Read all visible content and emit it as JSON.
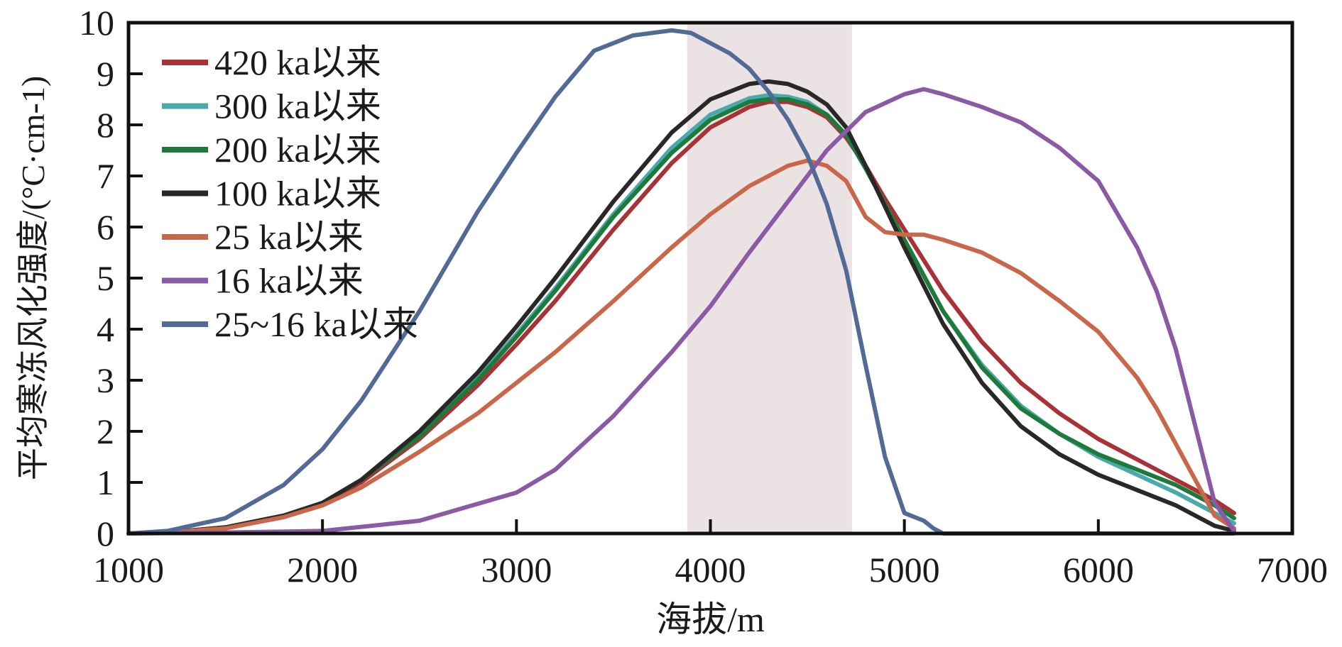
{
  "chart_data": {
    "type": "line",
    "xlabel": "海拔/m",
    "ylabel": "平均寒冻风化强度/(°C·cm-1)",
    "xlim": [
      1000,
      7000
    ],
    "ylim": [
      0,
      10
    ],
    "xticks": [
      "1000",
      "2000",
      "3000",
      "4000",
      "5000",
      "6000",
      "7000"
    ],
    "yticks": [
      "0",
      "1",
      "2",
      "3",
      "4",
      "5",
      "6",
      "7",
      "8",
      "9",
      "10"
    ],
    "grid": false,
    "legend_position": "top-left",
    "highlight_band": {
      "x_from": 3880,
      "x_to": 4730,
      "color": "#ebe3e3"
    },
    "series": [
      {
        "name": "420 ka以来",
        "color": "#a83236",
        "x": [
          1000,
          1200,
          1500,
          1800,
          2000,
          2200,
          2500,
          2800,
          3000,
          3200,
          3500,
          3800,
          4000,
          4200,
          4300,
          4400,
          4500,
          4600,
          4700,
          4800,
          4900,
          5000,
          5100,
          5200,
          5400,
          5600,
          5800,
          6000,
          6200,
          6400,
          6600,
          6700
        ],
        "y": [
          0,
          0.02,
          0.12,
          0.35,
          0.6,
          1.0,
          1.85,
          2.9,
          3.7,
          4.55,
          5.95,
          7.25,
          7.95,
          8.35,
          8.45,
          8.45,
          8.35,
          8.15,
          7.75,
          7.2,
          6.55,
          5.95,
          5.35,
          4.75,
          3.75,
          2.95,
          2.35,
          1.85,
          1.45,
          1.05,
          0.65,
          0.4
        ]
      },
      {
        "name": "300 ka以来",
        "color": "#4aa9ac",
        "x": [
          1000,
          1200,
          1500,
          1800,
          2000,
          2200,
          2500,
          2800,
          3000,
          3200,
          3500,
          3800,
          4000,
          4200,
          4300,
          4400,
          4500,
          4600,
          4700,
          4800,
          4900,
          5000,
          5100,
          5200,
          5400,
          5600,
          5800,
          6000,
          6200,
          6400,
          6600,
          6700
        ],
        "y": [
          0,
          0.02,
          0.12,
          0.35,
          0.6,
          1.05,
          1.95,
          3.05,
          3.9,
          4.8,
          6.25,
          7.55,
          8.2,
          8.52,
          8.58,
          8.55,
          8.45,
          8.2,
          7.8,
          7.15,
          6.45,
          5.75,
          5.05,
          4.35,
          3.3,
          2.5,
          1.95,
          1.5,
          1.15,
          0.8,
          0.4,
          0.2
        ]
      },
      {
        "name": "200 ka以来",
        "color": "#1e7a3a",
        "x": [
          1000,
          1200,
          1500,
          1800,
          2000,
          2200,
          2500,
          2800,
          3000,
          3200,
          3500,
          3800,
          4000,
          4200,
          4300,
          4400,
          4500,
          4600,
          4700,
          4800,
          4900,
          5000,
          5100,
          5200,
          5400,
          5600,
          5800,
          6000,
          6200,
          6400,
          6600,
          6700
        ],
        "y": [
          0,
          0.02,
          0.12,
          0.35,
          0.6,
          1.05,
          1.9,
          3.0,
          3.85,
          4.75,
          6.2,
          7.45,
          8.1,
          8.45,
          8.5,
          8.5,
          8.4,
          8.2,
          7.8,
          7.15,
          6.45,
          5.75,
          5.05,
          4.35,
          3.25,
          2.45,
          1.95,
          1.55,
          1.25,
          0.95,
          0.55,
          0.3
        ]
      },
      {
        "name": "100 ka以来",
        "color": "#2a2826",
        "x": [
          1000,
          1200,
          1500,
          1800,
          2000,
          2200,
          2500,
          2800,
          3000,
          3200,
          3500,
          3800,
          4000,
          4200,
          4300,
          4400,
          4500,
          4600,
          4700,
          4800,
          4900,
          5000,
          5100,
          5200,
          5400,
          5600,
          5800,
          6000,
          6200,
          6400,
          6600,
          6700
        ],
        "y": [
          0,
          0.02,
          0.12,
          0.35,
          0.6,
          1.05,
          2.0,
          3.15,
          4.05,
          5.0,
          6.5,
          7.85,
          8.5,
          8.8,
          8.85,
          8.8,
          8.65,
          8.4,
          7.95,
          7.2,
          6.4,
          5.6,
          4.85,
          4.1,
          2.95,
          2.1,
          1.55,
          1.15,
          0.85,
          0.55,
          0.15,
          0.05
        ]
      },
      {
        "name": "25 ka以来",
        "color": "#c8674a",
        "x": [
          1000,
          1200,
          1500,
          1800,
          2000,
          2200,
          2500,
          2800,
          3000,
          3200,
          3500,
          3800,
          4000,
          4200,
          4400,
          4500,
          4600,
          4700,
          4800,
          4900,
          5000,
          5100,
          5200,
          5400,
          5600,
          5800,
          6000,
          6200,
          6300,
          6400,
          6500,
          6600,
          6700
        ],
        "y": [
          0,
          0.02,
          0.1,
          0.32,
          0.55,
          0.9,
          1.6,
          2.35,
          2.95,
          3.55,
          4.55,
          5.6,
          6.25,
          6.8,
          7.2,
          7.3,
          7.2,
          6.9,
          6.2,
          5.9,
          5.85,
          5.85,
          5.75,
          5.5,
          5.1,
          4.55,
          3.95,
          3.05,
          2.45,
          1.75,
          1.05,
          0.35,
          0.1
        ]
      },
      {
        "name": "16 ka以来",
        "color": "#8a5aa6",
        "x": [
          1000,
          1500,
          2000,
          2500,
          3000,
          3200,
          3500,
          3800,
          4000,
          4200,
          4400,
          4600,
          4800,
          5000,
          5100,
          5200,
          5400,
          5600,
          5800,
          6000,
          6200,
          6300,
          6400,
          6500,
          6600,
          6700
        ],
        "y": [
          0,
          0.02,
          0.05,
          0.25,
          0.8,
          1.25,
          2.3,
          3.55,
          4.45,
          5.5,
          6.5,
          7.5,
          8.25,
          8.6,
          8.7,
          8.6,
          8.35,
          8.05,
          7.55,
          6.9,
          5.6,
          4.75,
          3.6,
          2.1,
          0.6,
          0.05
        ]
      },
      {
        "name": "25~16 ka以来",
        "color": "#526a96",
        "x": [
          1000,
          1200,
          1500,
          1800,
          2000,
          2200,
          2500,
          2800,
          3000,
          3200,
          3400,
          3600,
          3800,
          3900,
          4000,
          4100,
          4200,
          4300,
          4400,
          4500,
          4600,
          4700,
          4800,
          4900,
          5000,
          5100,
          5150,
          5200,
          5500,
          6000,
          6700
        ],
        "y": [
          0,
          0.05,
          0.3,
          0.95,
          1.65,
          2.6,
          4.35,
          6.3,
          7.45,
          8.55,
          9.45,
          9.75,
          9.85,
          9.8,
          9.6,
          9.4,
          9.1,
          8.65,
          8.1,
          7.4,
          6.45,
          5.15,
          3.3,
          1.5,
          0.4,
          0.25,
          0.1,
          0.0,
          0.0,
          0.0,
          0.0
        ]
      }
    ]
  }
}
